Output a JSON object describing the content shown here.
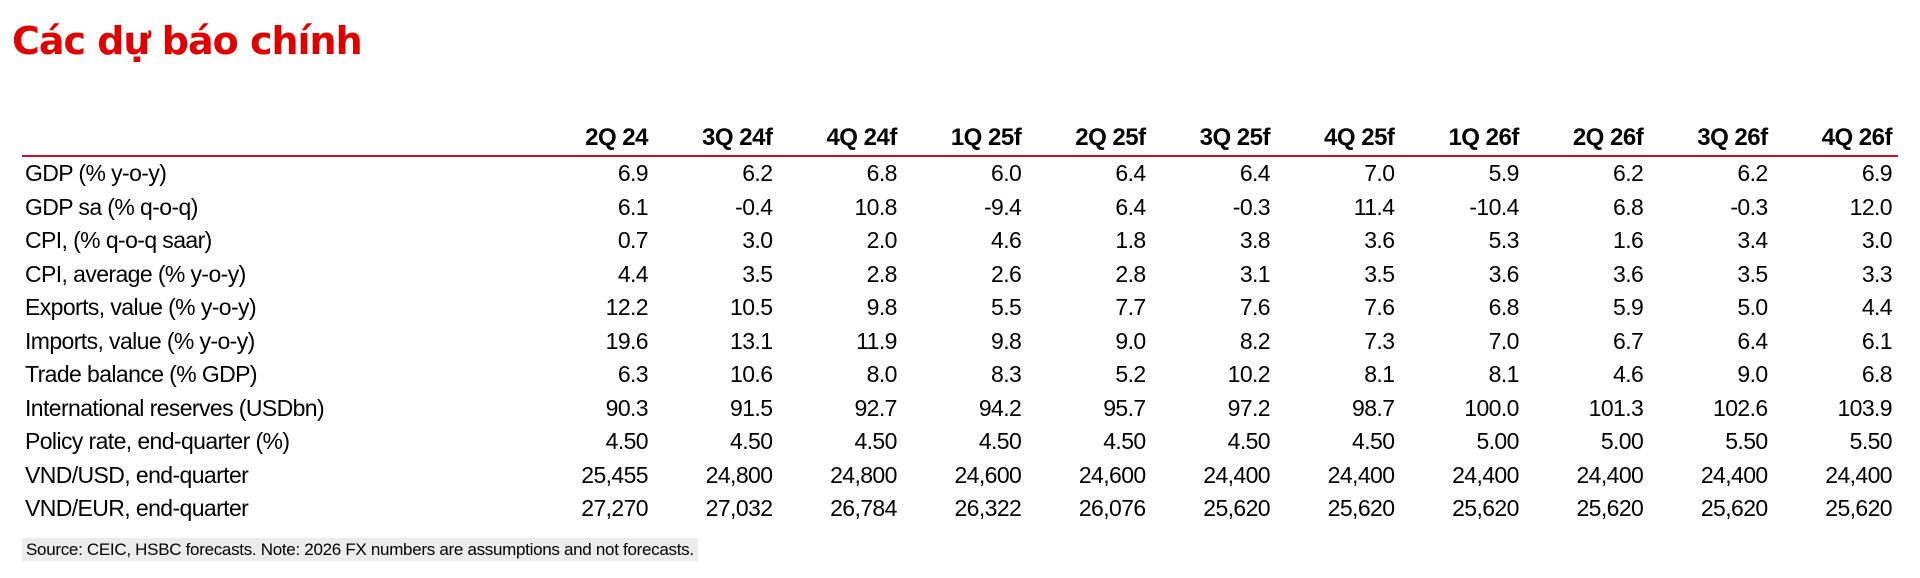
{
  "title": "Các dự báo chính",
  "table": {
    "header": [
      "2Q 24",
      "3Q 24f",
      "4Q 24f",
      "1Q 25f",
      "2Q 25f",
      "3Q 25f",
      "4Q 25f",
      "1Q 26f",
      "2Q 26f",
      "3Q 26f",
      "4Q 26f"
    ],
    "rows": [
      [
        "GDP (% y-o-y)",
        "6.9",
        "6.2",
        "6.8",
        "6.0",
        "6.4",
        "6.4",
        "7.0",
        "5.9",
        "6.2",
        "6.2",
        "6.9"
      ],
      [
        "GDP sa (% q-o-q)",
        "6.1",
        "-0.4",
        "10.8",
        "-9.4",
        "6.4",
        "-0.3",
        "11.4",
        "-10.4",
        "6.8",
        "-0.3",
        "12.0"
      ],
      [
        "CPI, (% q-o-q saar)",
        "0.7",
        "3.0",
        "2.0",
        "4.6",
        "1.8",
        "3.8",
        "3.6",
        "5.3",
        "1.6",
        "3.4",
        "3.0"
      ],
      [
        "CPI, average (% y-o-y)",
        "4.4",
        "3.5",
        "2.8",
        "2.6",
        "2.8",
        "3.1",
        "3.5",
        "3.6",
        "3.6",
        "3.5",
        "3.3"
      ],
      [
        "Exports, value (% y-o-y)",
        "12.2",
        "10.5",
        "9.8",
        "5.5",
        "7.7",
        "7.6",
        "7.6",
        "6.8",
        "5.9",
        "5.0",
        "4.4"
      ],
      [
        "Imports, value (% y-o-y)",
        "19.6",
        "13.1",
        "11.9",
        "9.8",
        "9.0",
        "8.2",
        "7.3",
        "7.0",
        "6.7",
        "6.4",
        "6.1"
      ],
      [
        "Trade balance (% GDP)",
        "6.3",
        "10.6",
        "8.0",
        "8.3",
        "5.2",
        "10.2",
        "8.1",
        "8.1",
        "4.6",
        "9.0",
        "6.8"
      ],
      [
        "International reserves (USDbn)",
        "90.3",
        "91.5",
        "92.7",
        "94.2",
        "95.7",
        "97.2",
        "98.7",
        "100.0",
        "101.3",
        "102.6",
        "103.9"
      ],
      [
        "Policy rate, end-quarter (%)",
        "4.50",
        "4.50",
        "4.50",
        "4.50",
        "4.50",
        "4.50",
        "4.50",
        "5.00",
        "5.00",
        "5.50",
        "5.50"
      ],
      [
        "VND/USD, end-quarter",
        "25,455",
        "24,800",
        "24,800",
        "24,600",
        "24,600",
        "24,400",
        "24,400",
        "24,400",
        "24,400",
        "24,400",
        "24,400"
      ],
      [
        "VND/EUR, end-quarter",
        "27,270",
        "27,032",
        "26,784",
        "26,322",
        "26,076",
        "25,620",
        "25,620",
        "25,620",
        "25,620",
        "25,620",
        "25,620"
      ]
    ]
  },
  "source": "Source: CEIC, HSBC forecasts. Note: 2026 FX numbers are assumptions and not forecasts."
}
